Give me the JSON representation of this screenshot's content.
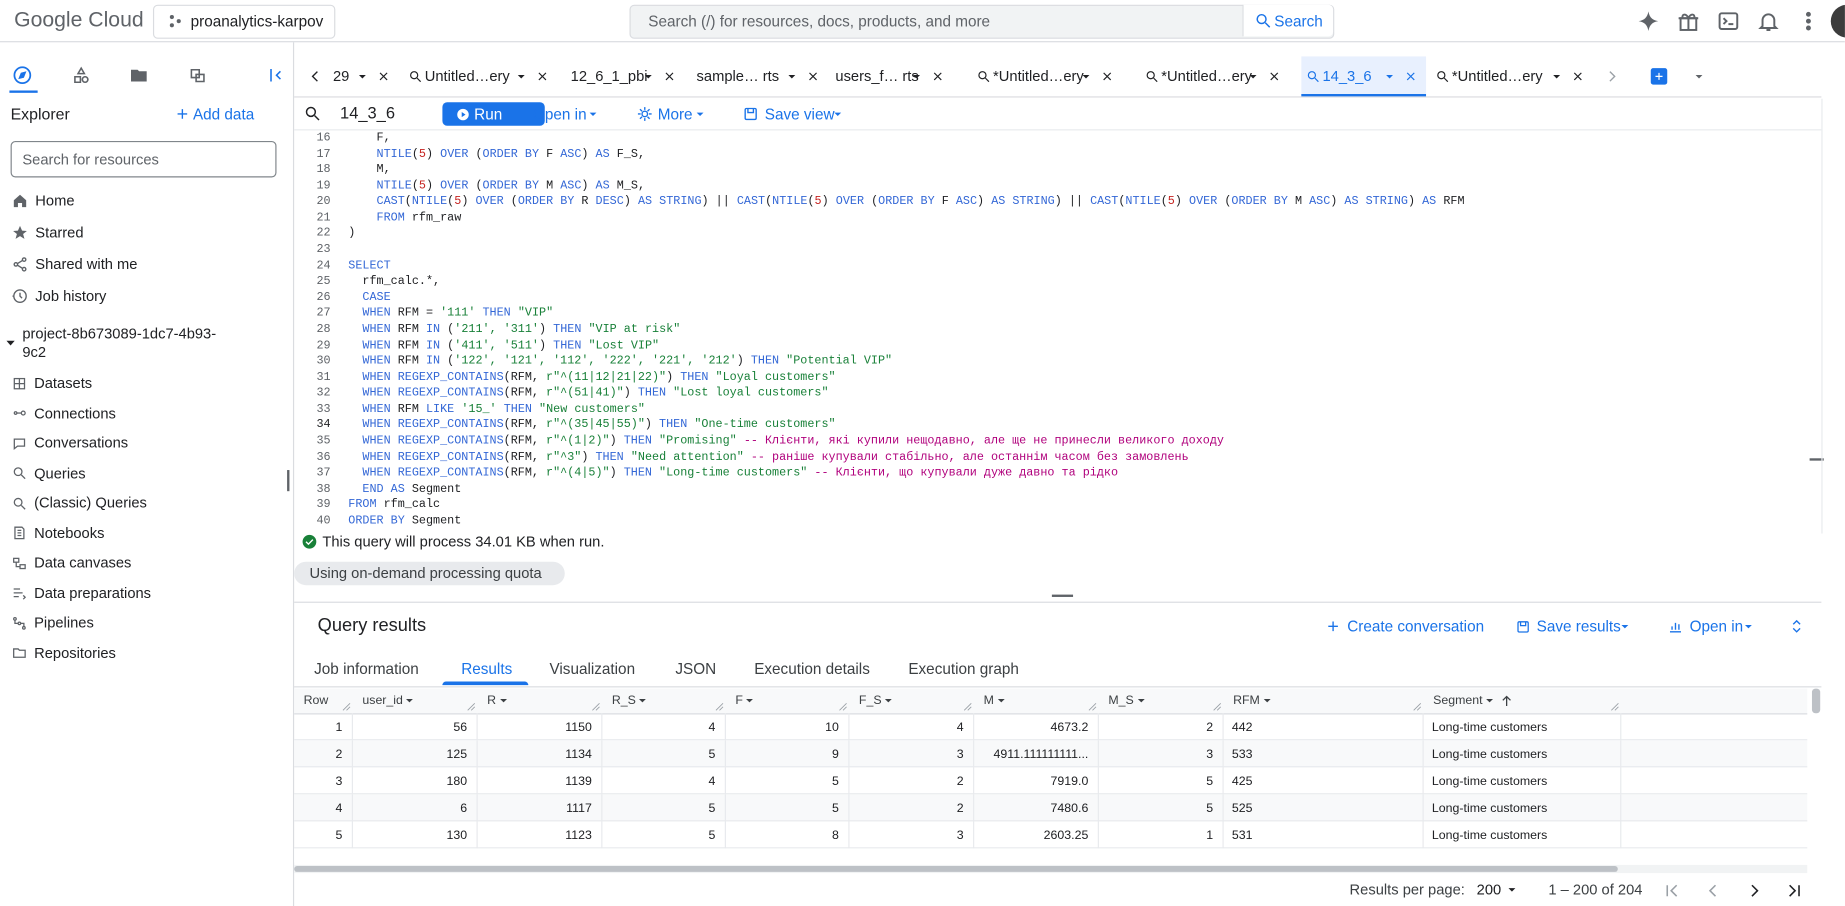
{
  "header": {
    "logo": "Google Cloud",
    "project": "proanalytics-karpov",
    "search_placeholder": "Search (/) for resources, docs, products, and more",
    "search_button": "Search"
  },
  "explorer": {
    "title": "Explorer",
    "add_data": "Add data",
    "search_placeholder": "Search for resources",
    "nav": [
      "Home",
      "Starred",
      "Shared with me",
      "Job history"
    ],
    "project": "project-8b673089-1dc7-4b93-9c2",
    "items": [
      "Datasets",
      "Connections",
      "Conversations",
      "Queries",
      "(Classic) Queries",
      "Notebooks",
      "Data canvases",
      "Data preparations",
      "Pipelines",
      "Repositories"
    ]
  },
  "tabs": {
    "items": [
      "29",
      "Untitled…ery",
      "12_6_1_pbi",
      "sample… rts",
      "users_f… rts",
      "*Untitled…ery",
      "*Untitled…ery",
      "14_3_6",
      "*Untitled…ery"
    ],
    "active": 7
  },
  "editor": {
    "title": "14_3_6",
    "run": "Run",
    "open_in": "Open in",
    "more": "More",
    "save_view": "Save view",
    "current_line": 34,
    "lines": [
      {
        "n": 16,
        "s": [
          [
            "    F,"
          ]
        ]
      },
      {
        "n": 17,
        "s": [
          [
            "    "
          ],
          [
            "NTILE",
            "k"
          ],
          [
            "("
          ],
          [
            "5",
            "n"
          ],
          [
            ") "
          ],
          [
            "OVER",
            "k"
          ],
          [
            " ("
          ],
          [
            "ORDER BY",
            "k"
          ],
          [
            " F "
          ],
          [
            "ASC",
            "k"
          ],
          [
            ") "
          ],
          [
            "AS",
            "k"
          ],
          [
            " F_S,"
          ]
        ]
      },
      {
        "n": 18,
        "s": [
          [
            "    M,"
          ]
        ]
      },
      {
        "n": 19,
        "s": [
          [
            "    "
          ],
          [
            "NTILE",
            "k"
          ],
          [
            "("
          ],
          [
            "5",
            "n"
          ],
          [
            ") "
          ],
          [
            "OVER",
            "k"
          ],
          [
            " ("
          ],
          [
            "ORDER BY",
            "k"
          ],
          [
            " M "
          ],
          [
            "ASC",
            "k"
          ],
          [
            ") "
          ],
          [
            "AS",
            "k"
          ],
          [
            " M_S,"
          ]
        ]
      },
      {
        "n": 20,
        "s": [
          [
            "    "
          ],
          [
            "CAST",
            "k"
          ],
          [
            "("
          ],
          [
            "NTILE",
            "k"
          ],
          [
            "("
          ],
          [
            "5",
            "n"
          ],
          [
            ") "
          ],
          [
            "OVER",
            "k"
          ],
          [
            " ("
          ],
          [
            "ORDER BY",
            "k"
          ],
          [
            " R "
          ],
          [
            "DESC",
            "k"
          ],
          [
            ") "
          ],
          [
            "AS STRING",
            "k"
          ],
          [
            ") || "
          ],
          [
            "CAST",
            "k"
          ],
          [
            "("
          ],
          [
            "NTILE",
            "k"
          ],
          [
            "("
          ],
          [
            "5",
            "n"
          ],
          [
            ") "
          ],
          [
            "OVER",
            "k"
          ],
          [
            " ("
          ],
          [
            "ORDER BY",
            "k"
          ],
          [
            " F "
          ],
          [
            "ASC",
            "k"
          ],
          [
            ") "
          ],
          [
            "AS STRING",
            "k"
          ],
          [
            ") || "
          ],
          [
            "CAST",
            "k"
          ],
          [
            "("
          ],
          [
            "NTILE",
            "k"
          ],
          [
            "("
          ],
          [
            "5",
            "n"
          ],
          [
            ") "
          ],
          [
            "OVER",
            "k"
          ],
          [
            " ("
          ],
          [
            "ORDER BY",
            "k"
          ],
          [
            " M "
          ],
          [
            "ASC",
            "k"
          ],
          [
            ") "
          ],
          [
            "AS STRING",
            "k"
          ],
          [
            ") "
          ],
          [
            "AS",
            "k"
          ],
          [
            " RFM"
          ]
        ]
      },
      {
        "n": 21,
        "s": [
          [
            "    "
          ],
          [
            "FROM",
            "k"
          ],
          [
            " rfm_raw"
          ]
        ]
      },
      {
        "n": 22,
        "s": [
          [
            ")"
          ]
        ]
      },
      {
        "n": 23,
        "s": []
      },
      {
        "n": 24,
        "s": [
          [
            "SELECT",
            "k"
          ]
        ]
      },
      {
        "n": 25,
        "s": [
          [
            "  rfm_calc.*,"
          ]
        ]
      },
      {
        "n": 26,
        "s": [
          [
            "  "
          ],
          [
            "CASE",
            "k"
          ]
        ]
      },
      {
        "n": 27,
        "s": [
          [
            "  "
          ],
          [
            "WHEN",
            "k"
          ],
          [
            " RFM = "
          ],
          [
            "'111'",
            "s"
          ],
          [
            " "
          ],
          [
            "THEN",
            "k"
          ],
          [
            " "
          ],
          [
            "\"VIP\"",
            "s"
          ]
        ]
      },
      {
        "n": 28,
        "s": [
          [
            "  "
          ],
          [
            "WHEN",
            "k"
          ],
          [
            " RFM "
          ],
          [
            "IN",
            "k"
          ],
          [
            " ("
          ],
          [
            "'211', '311'",
            "s"
          ],
          [
            ") "
          ],
          [
            "THEN",
            "k"
          ],
          [
            " "
          ],
          [
            "\"VIP at risk\"",
            "s"
          ]
        ]
      },
      {
        "n": 29,
        "s": [
          [
            "  "
          ],
          [
            "WHEN",
            "k"
          ],
          [
            " RFM "
          ],
          [
            "IN",
            "k"
          ],
          [
            " ("
          ],
          [
            "'411', '511'",
            "s"
          ],
          [
            ") "
          ],
          [
            "THEN",
            "k"
          ],
          [
            " "
          ],
          [
            "\"Lost VIP\"",
            "s"
          ]
        ]
      },
      {
        "n": 30,
        "s": [
          [
            "  "
          ],
          [
            "WHEN",
            "k"
          ],
          [
            " RFM "
          ],
          [
            "IN",
            "k"
          ],
          [
            " ("
          ],
          [
            "'122', '121', '112', '222', '221', '212'",
            "s"
          ],
          [
            ") "
          ],
          [
            "THEN",
            "k"
          ],
          [
            " "
          ],
          [
            "\"Potential VIP\"",
            "s"
          ]
        ]
      },
      {
        "n": 31,
        "s": [
          [
            "  "
          ],
          [
            "WHEN",
            "k"
          ],
          [
            " "
          ],
          [
            "REGEXP_CONTAINS",
            "k"
          ],
          [
            "(RFM, "
          ],
          [
            "r\"^(11|12|21|22)\"",
            "s"
          ],
          [
            ") "
          ],
          [
            "THEN",
            "k"
          ],
          [
            " "
          ],
          [
            "\"Loyal customers\"",
            "s"
          ]
        ]
      },
      {
        "n": 32,
        "s": [
          [
            "  "
          ],
          [
            "WHEN",
            "k"
          ],
          [
            " "
          ],
          [
            "REGEXP_CONTAINS",
            "k"
          ],
          [
            "(RFM, "
          ],
          [
            "r\"^(51|41)\"",
            "s"
          ],
          [
            ") "
          ],
          [
            "THEN",
            "k"
          ],
          [
            " "
          ],
          [
            "\"Lost loyal customers\"",
            "s"
          ]
        ]
      },
      {
        "n": 33,
        "s": [
          [
            "  "
          ],
          [
            "WHEN",
            "k"
          ],
          [
            " RFM "
          ],
          [
            "LIKE",
            "k"
          ],
          [
            " "
          ],
          [
            "'15_'",
            "s"
          ],
          [
            " "
          ],
          [
            "THEN",
            "k"
          ],
          [
            " "
          ],
          [
            "\"New customers\"",
            "s"
          ]
        ]
      },
      {
        "n": 34,
        "s": [
          [
            "  "
          ],
          [
            "WHEN",
            "k"
          ],
          [
            " "
          ],
          [
            "REGEXP_CONTAINS",
            "k"
          ],
          [
            "(RFM, "
          ],
          [
            "r\"^(35|45|55)\"",
            "s"
          ],
          [
            ") "
          ],
          [
            "THEN",
            "k"
          ],
          [
            " "
          ],
          [
            "\"One-time customers\"",
            "s"
          ]
        ]
      },
      {
        "n": 35,
        "s": [
          [
            "  "
          ],
          [
            "WHEN",
            "k"
          ],
          [
            " "
          ],
          [
            "REGEXP_CONTAINS",
            "k"
          ],
          [
            "(RFM, "
          ],
          [
            "r\"^(1|2)\"",
            "s"
          ],
          [
            ") "
          ],
          [
            "THEN",
            "k"
          ],
          [
            " "
          ],
          [
            "\"Promising\"",
            "s"
          ],
          [
            " "
          ],
          [
            "-- Клієнти, які купили нещодавно, але ще не принесли великого доходу",
            "c"
          ]
        ]
      },
      {
        "n": 36,
        "s": [
          [
            "  "
          ],
          [
            "WHEN",
            "k"
          ],
          [
            " "
          ],
          [
            "REGEXP_CONTAINS",
            "k"
          ],
          [
            "(RFM, "
          ],
          [
            "r\"^3\"",
            "s"
          ],
          [
            ") "
          ],
          [
            "THEN",
            "k"
          ],
          [
            " "
          ],
          [
            "\"Need attention\"",
            "s"
          ],
          [
            " "
          ],
          [
            "-- раніше купували стабільно, але останнім часом без замовлень",
            "c"
          ]
        ]
      },
      {
        "n": 37,
        "s": [
          [
            "  "
          ],
          [
            "WHEN",
            "k"
          ],
          [
            " "
          ],
          [
            "REGEXP_CONTAINS",
            "k"
          ],
          [
            "(RFM, "
          ],
          [
            "r\"^(4|5)\"",
            "s"
          ],
          [
            ") "
          ],
          [
            "THEN",
            "k"
          ],
          [
            " "
          ],
          [
            "\"Long-time customers\"",
            "s"
          ],
          [
            " "
          ],
          [
            "-- Клієнти, що купували дуже давно та рідко",
            "c"
          ]
        ]
      },
      {
        "n": 38,
        "s": [
          [
            "  "
          ],
          [
            "END AS",
            "k"
          ],
          [
            " Segment"
          ]
        ]
      },
      {
        "n": 39,
        "s": [
          [
            "FROM",
            "k"
          ],
          [
            " rfm_calc"
          ]
        ]
      },
      {
        "n": 40,
        "s": [
          [
            "ORDER BY",
            "k"
          ],
          [
            " Segment"
          ]
        ]
      }
    ]
  },
  "status": {
    "message": "This query will process 34.01 KB when run.",
    "quota": "Using on-demand processing quota"
  },
  "results": {
    "title": "Query results",
    "create_conversation": "Create conversation",
    "save_results": "Save results",
    "open_in": "Open in",
    "tabs": [
      "Job information",
      "Results",
      "Visualization",
      "JSON",
      "Execution details",
      "Execution graph"
    ],
    "active_tab": 1,
    "columns": [
      "Row",
      "user_id",
      "R",
      "R_S",
      "F",
      "F_S",
      "M",
      "M_S",
      "RFM",
      "Segment"
    ],
    "sorted_column": 9,
    "rows": [
      [
        "1",
        "56",
        "1150",
        "4",
        "10",
        "4",
        "4673.2",
        "2",
        "442",
        "Long-time customers"
      ],
      [
        "2",
        "125",
        "1134",
        "5",
        "9",
        "3",
        "4911.111111111...",
        "3",
        "533",
        "Long-time customers"
      ],
      [
        "3",
        "180",
        "1139",
        "4",
        "5",
        "2",
        "7919.0",
        "5",
        "425",
        "Long-time customers"
      ],
      [
        "4",
        "6",
        "1117",
        "5",
        "5",
        "2",
        "7480.6",
        "5",
        "525",
        "Long-time customers"
      ],
      [
        "5",
        "130",
        "1123",
        "5",
        "8",
        "3",
        "2603.25",
        "1",
        "531",
        "Long-time customers"
      ]
    ]
  },
  "pagination": {
    "per_page_label": "Results per page:",
    "per_page": "200",
    "range": "1 – 200 of 204"
  }
}
